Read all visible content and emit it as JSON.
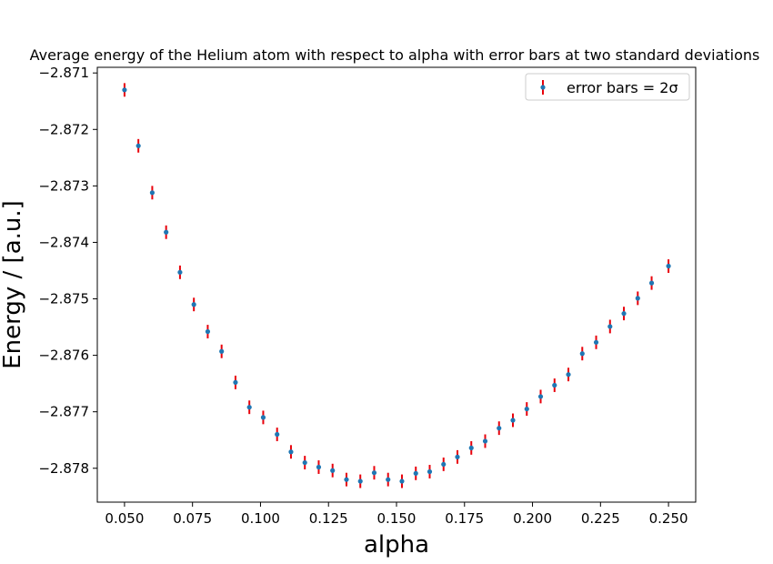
{
  "chart_data": {
    "type": "scatter",
    "title": "Average energy of the Helium atom with respect to alpha with error bars at two standard deviations",
    "xlabel": "alpha",
    "ylabel": "Energy / [a.u.]",
    "xlim": [
      0.04,
      0.26
    ],
    "ylim": [
      -2.8786,
      -2.8709
    ],
    "xticks": [
      0.05,
      0.075,
      0.1,
      0.125,
      0.15,
      0.175,
      0.2,
      0.225,
      0.25
    ],
    "xtick_labels": [
      "0.050",
      "0.075",
      "0.100",
      "0.125",
      "0.150",
      "0.175",
      "0.200",
      "0.225",
      "0.250"
    ],
    "yticks": [
      -2.871,
      -2.872,
      -2.873,
      -2.874,
      -2.875,
      -2.876,
      -2.877,
      -2.878
    ],
    "ytick_labels": [
      "−2.871",
      "−2.872",
      "−2.873",
      "−2.874",
      "−2.875",
      "−2.876",
      "−2.877",
      "−2.878"
    ],
    "grid": false,
    "legend_position": "top-right",
    "series": [
      {
        "name": "error bars = 2σ",
        "marker_color": "#1f77b4",
        "errorbar_color": "#e8000b",
        "error": 0.00012,
        "x": [
          0.05,
          0.0551,
          0.0602,
          0.0653,
          0.0704,
          0.0755,
          0.0806,
          0.0857,
          0.0908,
          0.0959,
          0.101,
          0.1061,
          0.1112,
          0.1163,
          0.1214,
          0.1265,
          0.1316,
          0.1367,
          0.1418,
          0.1469,
          0.152,
          0.1571,
          0.1622,
          0.1673,
          0.1724,
          0.1775,
          0.1826,
          0.1877,
          0.1928,
          0.1979,
          0.203,
          0.2081,
          0.2132,
          0.2183,
          0.2234,
          0.2285,
          0.2336,
          0.2387,
          0.2438,
          0.25
        ],
        "y": [
          -2.8713,
          -2.87229,
          -2.87312,
          -2.87382,
          -2.87453,
          -2.8751,
          -2.87558,
          -2.87593,
          -2.87648,
          -2.87692,
          -2.8771,
          -2.8774,
          -2.87771,
          -2.8779,
          -2.87798,
          -2.87804,
          -2.8782,
          -2.87823,
          -2.87808,
          -2.8782,
          -2.87823,
          -2.87809,
          -2.87806,
          -2.87793,
          -2.8778,
          -2.87764,
          -2.87752,
          -2.87729,
          -2.87715,
          -2.87695,
          -2.87673,
          -2.87653,
          -2.87634,
          -2.87597,
          -2.87577,
          -2.87549,
          -2.87526,
          -2.87499,
          -2.87472,
          -2.87442
        ]
      }
    ]
  }
}
